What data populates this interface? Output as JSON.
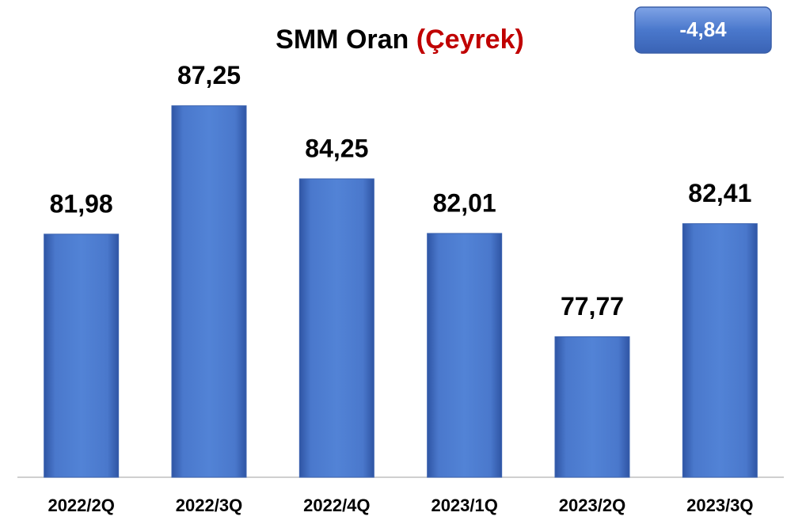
{
  "chart_data": {
    "type": "bar",
    "title": "SMM Oran",
    "subtitle": "(Çeyrek)",
    "annotation": "-4,84",
    "categories": [
      "2022/2Q",
      "2022/3Q",
      "2022/4Q",
      "2023/1Q",
      "2023/2Q",
      "2023/3Q"
    ],
    "values": [
      81.98,
      87.25,
      84.25,
      82.01,
      77.77,
      82.41
    ],
    "value_labels": [
      "81,98",
      "87,25",
      "84,25",
      "82,01",
      "77,77",
      "82,41"
    ],
    "color": "#4472c4",
    "ylim": [
      72,
      90
    ]
  }
}
